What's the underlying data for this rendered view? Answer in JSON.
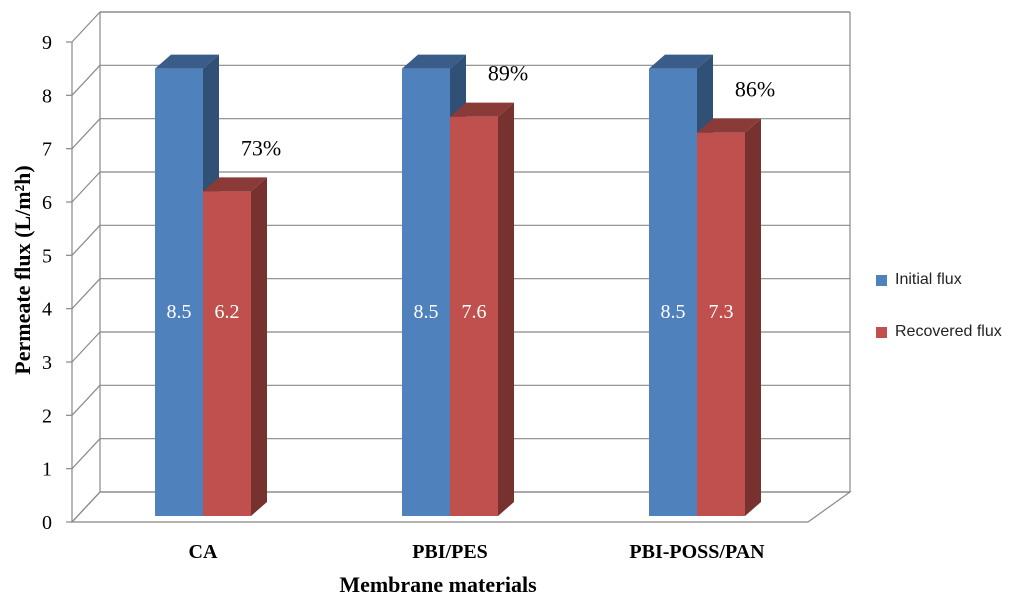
{
  "chart_data": {
    "type": "bar",
    "title": "",
    "xlabel": "Membrane materials",
    "ylabel": "Permeate flux (L/m²h)",
    "ylim": [
      0,
      9
    ],
    "yticks": [
      "0",
      "1",
      "2",
      "3",
      "4",
      "5",
      "6",
      "7",
      "8",
      "9"
    ],
    "categories": [
      "CA",
      "PBI/PES",
      "PBI-POSS/PAN"
    ],
    "series": [
      {
        "name": "Initial flux",
        "values": [
          8.5,
          8.5,
          8.5
        ],
        "labels": [
          "8.5",
          "8.5",
          "8.5"
        ],
        "color": "#4f81bd"
      },
      {
        "name": "Recovered flux",
        "values": [
          6.2,
          7.6,
          7.3
        ],
        "labels": [
          "6.2",
          "7.6",
          "7.3"
        ],
        "color": "#c0504d"
      }
    ],
    "annotations": [
      "73%",
      "89%",
      "86%"
    ],
    "grid": true,
    "legend": "right"
  }
}
